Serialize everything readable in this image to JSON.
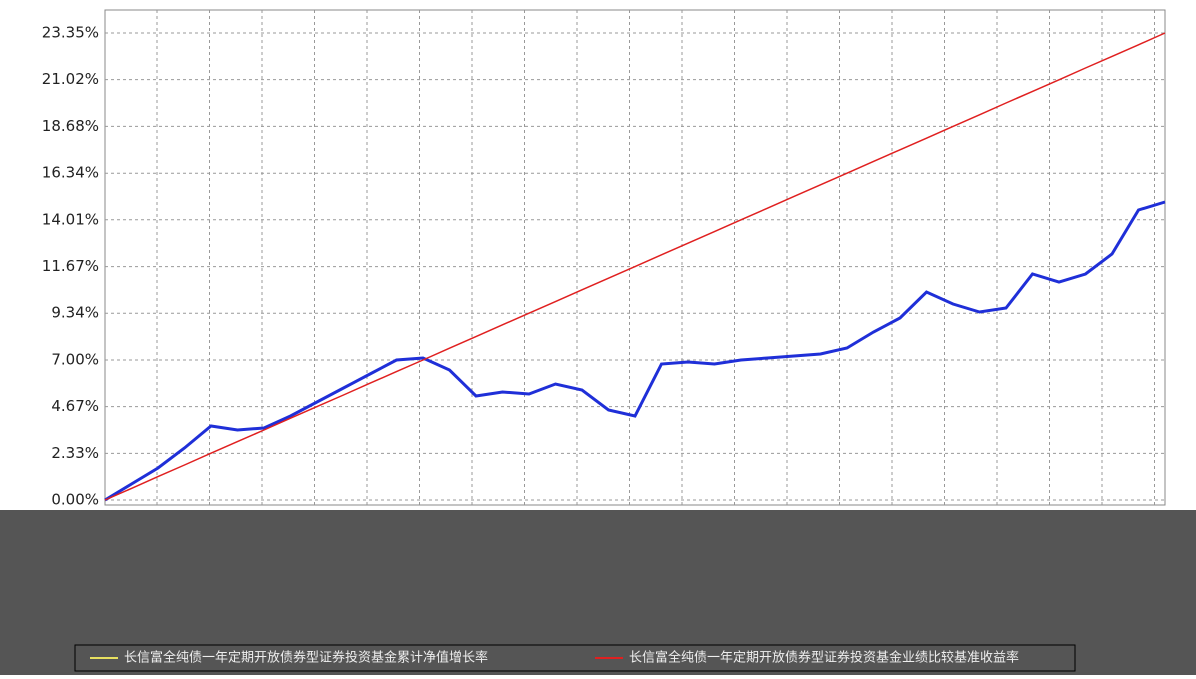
{
  "chart_data": {
    "type": "line",
    "categories": [
      null,
      null,
      null,
      null,
      null,
      null,
      null,
      null,
      null,
      null,
      null,
      null,
      null,
      null,
      null,
      null,
      null,
      null,
      null,
      null,
      null,
      null,
      null,
      null,
      null,
      null,
      null,
      null,
      null,
      null,
      null,
      null,
      null,
      null,
      null,
      null,
      null,
      null,
      null,
      null,
      null
    ],
    "series": [
      {
        "name": "长信富全纯债一年定期开放债券型证券投资基金累计净值增长率",
        "color": "#1f2fd8",
        "values": [
          0,
          0.8,
          1.6,
          2.6,
          3.7,
          3.5,
          3.6,
          4.2,
          4.9,
          5.6,
          6.3,
          7.0,
          7.1,
          6.5,
          5.2,
          5.4,
          5.3,
          5.8,
          5.5,
          4.5,
          4.2,
          6.8,
          6.9,
          6.8,
          7.0,
          7.1,
          7.2,
          7.3,
          7.6,
          8.4,
          9.1,
          10.4,
          9.8,
          9.4,
          9.6,
          11.3,
          10.9,
          11.3,
          12.3,
          14.5,
          14.9
        ]
      },
      {
        "name": "长信富全纯债一年定期开放债券型证券投资基金业绩比较基准收益率",
        "color": "#e02020",
        "values": [
          0,
          0.58,
          1.17,
          1.75,
          2.34,
          2.92,
          3.5,
          4.09,
          4.67,
          5.25,
          5.84,
          6.42,
          7.0,
          7.59,
          8.17,
          8.76,
          9.34,
          9.92,
          10.51,
          11.09,
          11.67,
          12.26,
          12.84,
          13.42,
          14.01,
          14.59,
          15.18,
          15.76,
          16.34,
          16.93,
          17.51,
          18.09,
          18.68,
          19.26,
          19.85,
          20.43,
          21.01,
          21.6,
          22.18,
          22.76,
          23.35
        ]
      }
    ],
    "ylim": [
      -0.25,
      24.5
    ],
    "yticks": [
      {
        "value": 0,
        "label": "0.00%"
      },
      {
        "value": 2.33,
        "label": "2.33%"
      },
      {
        "value": 4.67,
        "label": "4.67%"
      },
      {
        "value": 7.0,
        "label": "7.00%"
      },
      {
        "value": 9.34,
        "label": "9.34%"
      },
      {
        "value": 11.67,
        "label": "11.67%"
      },
      {
        "value": 14.01,
        "label": "14.01%"
      },
      {
        "value": 16.34,
        "label": "16.34%"
      },
      {
        "value": 18.68,
        "label": "18.68%"
      },
      {
        "value": 21.02,
        "label": "21.02%"
      },
      {
        "value": 23.35,
        "label": "23.35%"
      }
    ],
    "grid": true
  }
}
